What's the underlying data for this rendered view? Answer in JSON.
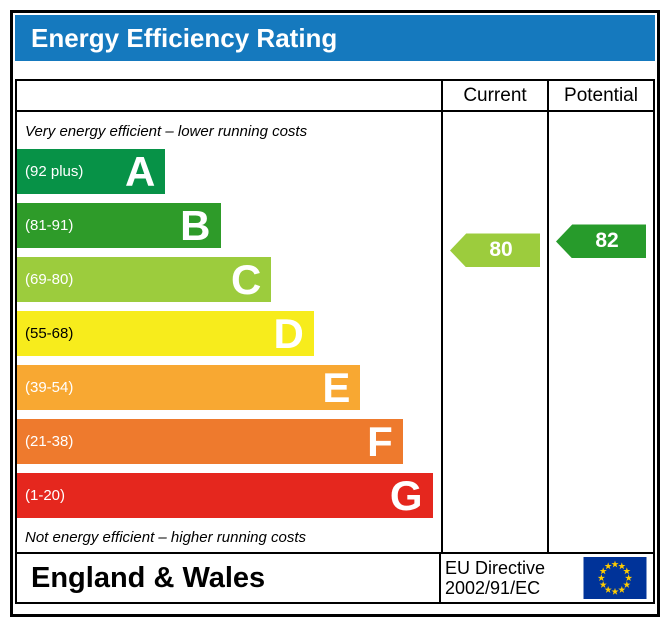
{
  "title": "Energy Efficiency Rating",
  "columns": {
    "current": "Current",
    "potential": "Potential"
  },
  "notes": {
    "top": "Very energy efficient – lower running costs",
    "bottom": "Not energy efficient – higher running costs"
  },
  "bands": [
    {
      "letter": "A",
      "label": "(92 plus)",
      "min": 92,
      "max": 100,
      "color": "#079247",
      "label_color": "#ffffff",
      "letter_color": "#ffffff",
      "width_pct": 35
    },
    {
      "letter": "B",
      "label": "(81-91)",
      "min": 81,
      "max": 91,
      "color": "#2e9b29",
      "label_color": "#ffffff",
      "letter_color": "#ffffff",
      "width_pct": 48
    },
    {
      "letter": "C",
      "label": "(69-80)",
      "min": 69,
      "max": 80,
      "color": "#9ccc3d",
      "label_color": "#ffffff",
      "letter_color": "#ffffff",
      "width_pct": 60
    },
    {
      "letter": "D",
      "label": "(55-68)",
      "min": 55,
      "max": 68,
      "color": "#f7ec1c",
      "label_color": "#000000",
      "letter_color": "#ffffff",
      "width_pct": 70
    },
    {
      "letter": "E",
      "label": "(39-54)",
      "min": 39,
      "max": 54,
      "color": "#f8a832",
      "label_color": "#ffffff",
      "letter_color": "#ffffff",
      "width_pct": 81
    },
    {
      "letter": "F",
      "label": "(21-38)",
      "min": 21,
      "max": 38,
      "color": "#ee7a2d",
      "label_color": "#ffffff",
      "letter_color": "#ffffff",
      "width_pct": 91
    },
    {
      "letter": "G",
      "label": "(1-20)",
      "min": 1,
      "max": 20,
      "color": "#e5271e",
      "label_color": "#ffffff",
      "letter_color": "#ffffff",
      "width_pct": 98
    }
  ],
  "arrows": {
    "current": {
      "value": "80",
      "band": "C",
      "color": "#9ccc3d"
    },
    "potential": {
      "value": "82",
      "band": "B",
      "color": "#279b2b"
    }
  },
  "footer": {
    "region": "England & Wales",
    "directive_line1": "EU Directive",
    "directive_line2": "2002/91/EC"
  },
  "theme": {
    "header_bg": "#1579be",
    "header_text": "#ffffff",
    "border": "#000000",
    "eu_flag_bg": "#003399",
    "eu_flag_star": "#ffcc00"
  },
  "chart_data": {
    "type": "bar",
    "title": "Energy Efficiency Rating",
    "bands": [
      {
        "letter": "A",
        "range": "92 plus",
        "min": 92,
        "max": 100
      },
      {
        "letter": "B",
        "range": "81-91",
        "min": 81,
        "max": 91
      },
      {
        "letter": "C",
        "range": "69-80",
        "min": 69,
        "max": 80
      },
      {
        "letter": "D",
        "range": "55-68",
        "min": 55,
        "max": 68
      },
      {
        "letter": "E",
        "range": "39-54",
        "min": 39,
        "max": 54
      },
      {
        "letter": "F",
        "range": "21-38",
        "min": 21,
        "max": 38
      },
      {
        "letter": "G",
        "range": "1-20",
        "min": 1,
        "max": 20
      }
    ],
    "current": 80,
    "potential": 82,
    "region": "England & Wales",
    "directive": "EU Directive 2002/91/EC"
  }
}
